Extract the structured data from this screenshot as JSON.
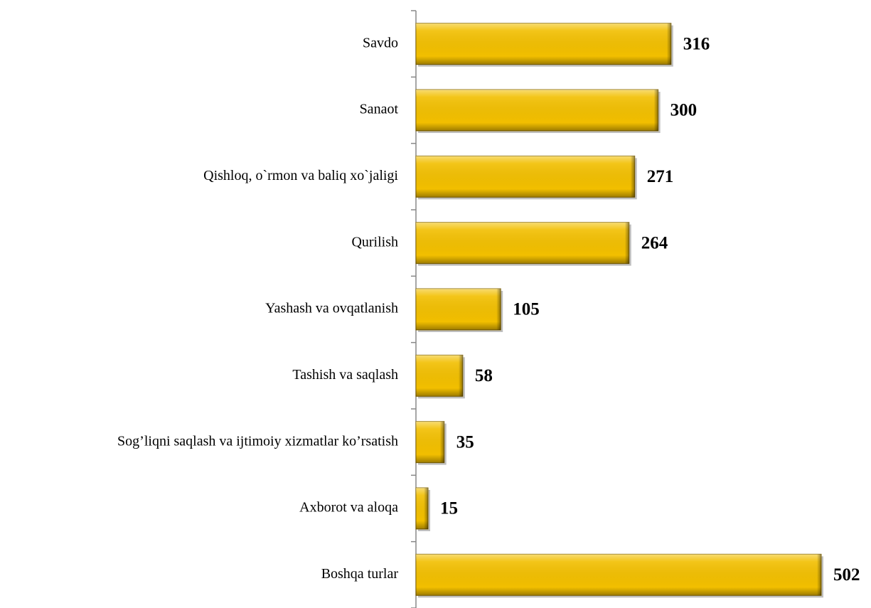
{
  "chart_data": {
    "type": "bar",
    "orientation": "horizontal",
    "categories": [
      "Savdo",
      "Sanaot",
      "Qishloq, o`rmon va baliq xo`jaligi",
      "Qurilish",
      "Yashash va ovqatlanish",
      "Tashish va saqlash",
      "Sog’liqni saqlash va ijtimoiy xizmatlar ko’rsatish",
      "Axborot va aloqa",
      "Boshqa turlar"
    ],
    "values": [
      316,
      300,
      271,
      264,
      105,
      58,
      35,
      15,
      502
    ],
    "color": "#f2bf00"
  }
}
